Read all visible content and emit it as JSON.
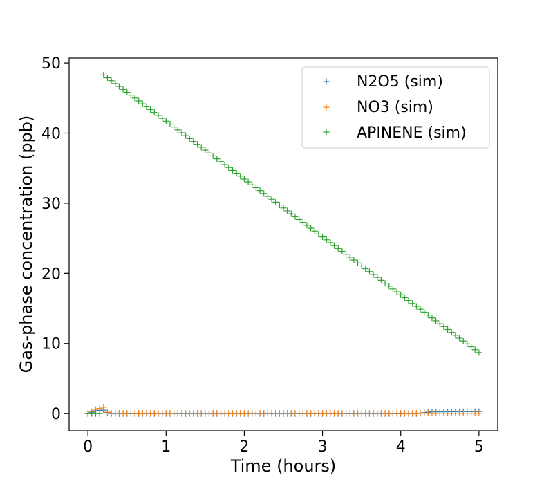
{
  "chart_data": {
    "type": "scatter",
    "title": "",
    "xlabel": "Time (hours)",
    "ylabel": "Gas-phase concentration (ppb)",
    "xlim": [
      -0.24,
      5.24
    ],
    "ylim": [
      -2.45,
      50.7
    ],
    "x_ticks": [
      0,
      1,
      2,
      3,
      4,
      5
    ],
    "y_ticks": [
      0,
      10,
      20,
      30,
      40,
      50
    ],
    "grid": false,
    "legend_position": "top-right",
    "marker": "+",
    "series": [
      {
        "name": "N2O5 (sim)",
        "color": "#1f77b4",
        "x_start": 0,
        "x_end": 5,
        "x_step": 0.05,
        "profile": [
          [
            0,
            0
          ],
          [
            0.1,
            0.4
          ],
          [
            0.2,
            0.5
          ],
          [
            0.25,
            0.1
          ],
          [
            0.3,
            0.0
          ],
          [
            4.2,
            0.0
          ],
          [
            4.4,
            0.25
          ],
          [
            5.0,
            0.3
          ]
        ]
      },
      {
        "name": "NO3 (sim)",
        "color": "#ff7f0e",
        "x_start": 0,
        "x_end": 5,
        "x_step": 0.05,
        "profile": [
          [
            0,
            0
          ],
          [
            0.1,
            0.6
          ],
          [
            0.2,
            0.9
          ],
          [
            0.25,
            0.2
          ],
          [
            0.3,
            0.05
          ],
          [
            5.0,
            0.05
          ]
        ]
      },
      {
        "name": "APINENE (sim)",
        "color": "#2ca02c",
        "x_start": 0,
        "x_end": 5,
        "x_step": 0.05,
        "profile": [
          [
            0,
            0
          ],
          [
            0.15,
            0
          ],
          [
            0.2,
            48.3
          ],
          [
            5.0,
            8.7
          ]
        ]
      }
    ]
  }
}
